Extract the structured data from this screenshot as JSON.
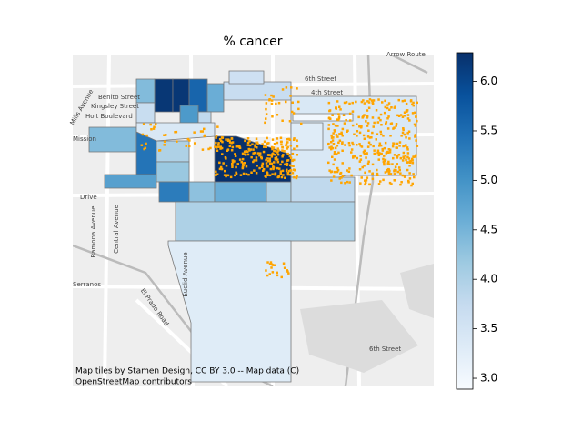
{
  "chart_data": {
    "type": "choropleth",
    "title": "% cancer",
    "values": [
      6.2,
      6.2,
      5.6,
      4.6,
      4.4,
      3.7,
      4.9,
      3.8,
      4.4,
      5.4,
      4.8,
      4.0,
      4.2,
      5.3,
      4.3,
      4.6,
      4.0,
      6.3,
      3.4,
      3.0,
      3.8,
      4.0,
      3.3,
      3.7,
      3.6,
      3.4,
      3.3
    ],
    "clim": [
      2.89,
      6.29
    ],
    "cticks": [
      {
        "value": 3,
        "label": "3.0"
      },
      {
        "value": 3.5,
        "label": "3.5"
      },
      {
        "value": 4,
        "label": "4.0"
      },
      {
        "value": 4.5,
        "label": "4.5"
      },
      {
        "value": 5,
        "label": "5.0"
      },
      {
        "value": 5.5,
        "label": "5.5"
      },
      {
        "value": 6,
        "label": "6.0"
      }
    ],
    "colormap": [
      "#f7fbff",
      "#deebf7",
      "#c6dbef",
      "#9ecae1",
      "#6baed6",
      "#4292c6",
      "#2171b5",
      "#08519c",
      "#08306b"
    ],
    "point_color": "#ffa500",
    "street_labels": [
      "6th Street",
      "4th Street",
      "Benito Street",
      "Kingsley Street",
      "Holt Boulevard",
      "Mission",
      "Drive",
      "Ramona Avenue",
      "Central Avenue",
      "Euclid Avenue",
      "El Prado Road",
      "Serranos",
      "Arrow Route",
      "6th Street",
      "Mills Avenue"
    ],
    "attribution": [
      "Map tiles by Stamen Design, CC BY 3.0 -- Map data (C)",
      "OpenStreetMap contributors"
    ]
  }
}
